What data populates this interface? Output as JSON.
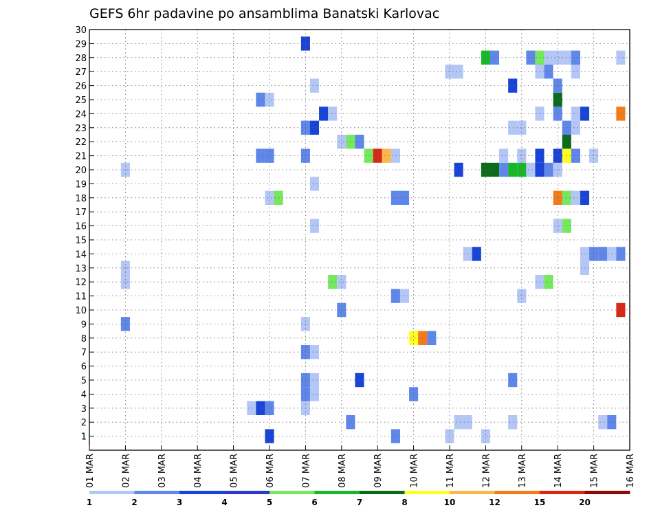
{
  "chart_data": {
    "type": "heatmap",
    "title": "GEFS 6hr padavine po ansamblima Banatski Karlovac",
    "x_labels": [
      "01 MAR",
      "02 MAR",
      "03 MAR",
      "04 MAR",
      "05 MAR",
      "06 MAR",
      "07 MAR",
      "08 MAR",
      "09 MAR",
      "10 MAR",
      "11 MAR",
      "12 MAR",
      "13 MAR",
      "14 MAR",
      "15 MAR",
      "16 MAR"
    ],
    "y_labels": [
      "1",
      "2",
      "3",
      "4",
      "5",
      "6",
      "7",
      "8",
      "9",
      "10",
      "11",
      "12",
      "13",
      "14",
      "15",
      "16",
      "17",
      "18",
      "19",
      "20",
      "21",
      "22",
      "23",
      "24",
      "25",
      "26",
      "27",
      "28",
      "29",
      "30"
    ],
    "x_range_days": [
      0,
      15
    ],
    "grid": true,
    "legend": {
      "position": "bottom",
      "levels": [
        1,
        2,
        3,
        4,
        5,
        6,
        7,
        8,
        10,
        12,
        15,
        20
      ],
      "colors": [
        "#b3c6f5",
        "#5f87ea",
        "#1a44d6",
        "#2d39c9",
        "#75e85e",
        "#17b72b",
        "#0a6b1a",
        "#ffff20",
        "#fbb84a",
        "#f27c18",
        "#d82818",
        "#8b0a0a"
      ]
    },
    "cells": [
      [
        8.5,
        1,
        1
      ],
      [
        10.0,
        1,
        0
      ],
      [
        11.0,
        1,
        0
      ],
      [
        5.0,
        1,
        2
      ],
      [
        7.25,
        2,
        1
      ],
      [
        10.25,
        2,
        0
      ],
      [
        10.5,
        2,
        0
      ],
      [
        11.75,
        2,
        0
      ],
      [
        14.25,
        2,
        0
      ],
      [
        14.5,
        2,
        1
      ],
      [
        4.5,
        3,
        0
      ],
      [
        4.75,
        3,
        2
      ],
      [
        5.0,
        3,
        1
      ],
      [
        6.0,
        3,
        0
      ],
      [
        6.0,
        4,
        1
      ],
      [
        6.25,
        4,
        0
      ],
      [
        9.0,
        4,
        1
      ],
      [
        6.0,
        5,
        1
      ],
      [
        6.25,
        5,
        0
      ],
      [
        7.5,
        5,
        2
      ],
      [
        11.75,
        5,
        1
      ],
      [
        6.0,
        7,
        1
      ],
      [
        6.25,
        7,
        0
      ],
      [
        9.0,
        8,
        7
      ],
      [
        9.25,
        8,
        9
      ],
      [
        9.5,
        8,
        1
      ],
      [
        1.0,
        9,
        1
      ],
      [
        6.0,
        9,
        0
      ],
      [
        7.0,
        10,
        1
      ],
      [
        14.75,
        10,
        10
      ],
      [
        8.5,
        11,
        1
      ],
      [
        8.75,
        11,
        0
      ],
      [
        12.0,
        11,
        0
      ],
      [
        1.0,
        12,
        0
      ],
      [
        6.75,
        12,
        4
      ],
      [
        7.0,
        12,
        0
      ],
      [
        12.5,
        12,
        0
      ],
      [
        12.75,
        12,
        4
      ],
      [
        1.0,
        13,
        0
      ],
      [
        13.75,
        13,
        0
      ],
      [
        10.5,
        14,
        0
      ],
      [
        10.75,
        14,
        2
      ],
      [
        13.75,
        14,
        0
      ],
      [
        14.0,
        14,
        1
      ],
      [
        14.25,
        14,
        1
      ],
      [
        14.5,
        14,
        0
      ],
      [
        14.75,
        14,
        1
      ],
      [
        6.25,
        16,
        0
      ],
      [
        13.0,
        16,
        0
      ],
      [
        13.25,
        16,
        4
      ],
      [
        5.0,
        18,
        0
      ],
      [
        5.25,
        18,
        4
      ],
      [
        8.5,
        18,
        1
      ],
      [
        8.75,
        18,
        1
      ],
      [
        13.0,
        18,
        9
      ],
      [
        13.25,
        18,
        4
      ],
      [
        13.5,
        18,
        0
      ],
      [
        13.75,
        18,
        2
      ],
      [
        6.25,
        19,
        0
      ],
      [
        1.0,
        20,
        0
      ],
      [
        10.25,
        20,
        2
      ],
      [
        11.0,
        20,
        6
      ],
      [
        11.25,
        20,
        6
      ],
      [
        11.5,
        20,
        1
      ],
      [
        11.75,
        20,
        5
      ],
      [
        12.0,
        20,
        5
      ],
      [
        12.25,
        20,
        0
      ],
      [
        12.5,
        20,
        2
      ],
      [
        12.75,
        20,
        1
      ],
      [
        13.0,
        20,
        0
      ],
      [
        4.75,
        21,
        1
      ],
      [
        5.0,
        21,
        1
      ],
      [
        6.0,
        21,
        1
      ],
      [
        7.75,
        21,
        4
      ],
      [
        8.0,
        21,
        10
      ],
      [
        8.25,
        21,
        8
      ],
      [
        8.5,
        21,
        0
      ],
      [
        11.5,
        21,
        0
      ],
      [
        12.0,
        21,
        0
      ],
      [
        12.5,
        21,
        2
      ],
      [
        13.0,
        21,
        2
      ],
      [
        13.25,
        21,
        7
      ],
      [
        13.5,
        21,
        1
      ],
      [
        14.0,
        21,
        0
      ],
      [
        7.0,
        22,
        0
      ],
      [
        7.25,
        22,
        4
      ],
      [
        7.5,
        22,
        1
      ],
      [
        13.25,
        22,
        6
      ],
      [
        6.0,
        23,
        1
      ],
      [
        6.25,
        23,
        2
      ],
      [
        11.75,
        23,
        0
      ],
      [
        12.0,
        23,
        0
      ],
      [
        13.25,
        23,
        1
      ],
      [
        13.5,
        23,
        0
      ],
      [
        6.5,
        24,
        2
      ],
      [
        6.75,
        24,
        0
      ],
      [
        12.5,
        24,
        0
      ],
      [
        13.0,
        24,
        1
      ],
      [
        13.5,
        24,
        0
      ],
      [
        13.75,
        24,
        2
      ],
      [
        14.75,
        24,
        9
      ],
      [
        4.75,
        25,
        1
      ],
      [
        5.0,
        25,
        0
      ],
      [
        13.0,
        25,
        6
      ],
      [
        6.25,
        26,
        0
      ],
      [
        11.75,
        26,
        2
      ],
      [
        13.0,
        26,
        1
      ],
      [
        10.0,
        27,
        0
      ],
      [
        10.25,
        27,
        0
      ],
      [
        12.5,
        27,
        0
      ],
      [
        12.75,
        27,
        1
      ],
      [
        13.5,
        27,
        0
      ],
      [
        11.0,
        28,
        5
      ],
      [
        11.25,
        28,
        1
      ],
      [
        12.25,
        28,
        1
      ],
      [
        12.5,
        28,
        4
      ],
      [
        12.75,
        28,
        0
      ],
      [
        13.0,
        28,
        0
      ],
      [
        13.25,
        28,
        0
      ],
      [
        13.5,
        28,
        1
      ],
      [
        14.75,
        28,
        0
      ],
      [
        6.0,
        29,
        2
      ]
    ]
  }
}
